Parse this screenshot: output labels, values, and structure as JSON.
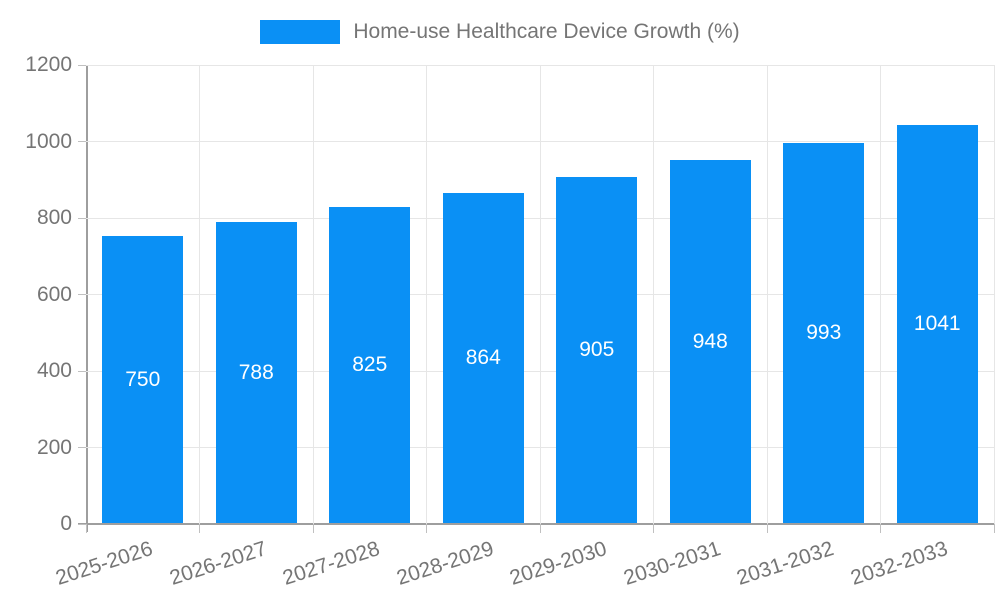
{
  "chart_data": {
    "type": "bar",
    "title": "Home-use Healthcare Device Growth (%)",
    "categories": [
      "2025-2026",
      "2026-2027",
      "2027-2028",
      "2028-2029",
      "2029-2030",
      "2030-2031",
      "2031-2032",
      "2032-2033"
    ],
    "values": [
      750,
      788,
      825,
      864,
      905,
      948,
      993,
      1041
    ],
    "xlabel": "",
    "ylabel": "",
    "ylim": [
      0,
      1200
    ],
    "yticks": [
      0,
      200,
      400,
      600,
      800,
      1000,
      1200
    ],
    "grid": true,
    "legend_position": "top-center",
    "bar_color": "#0a90f5",
    "value_label_color": "#ffffff",
    "text_color": "#757575",
    "gridline_color": "#e6e6e6",
    "axis_color": "#9e9e9e"
  }
}
